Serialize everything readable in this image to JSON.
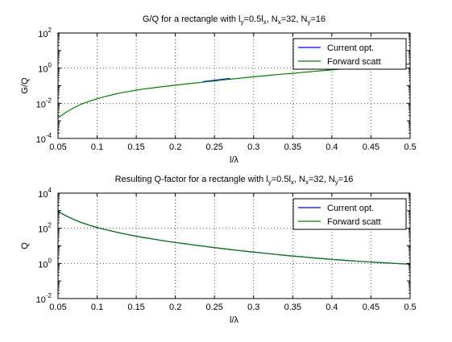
{
  "chart_data": [
    {
      "type": "line",
      "title": "G/Q for a rectangle with l_y=0.5l_x, N_x=32, N_y=16",
      "title_parts": [
        {
          "t": "G/Q for a rectangle with l",
          "s": ""
        },
        {
          "t": "y",
          "s": "sub"
        },
        {
          "t": "=0.5l",
          "s": ""
        },
        {
          "t": "x",
          "s": "sub"
        },
        {
          "t": ", N",
          "s": ""
        },
        {
          "t": "x",
          "s": "sub"
        },
        {
          "t": "=32, N",
          "s": ""
        },
        {
          "t": "y",
          "s": "sub"
        },
        {
          "t": "=16",
          "s": ""
        }
      ],
      "xlabel": "l/λ",
      "ylabel": "G/Q",
      "xlim": [
        0.05,
        0.5
      ],
      "ylim_log10": [
        -4,
        2
      ],
      "yscale": "log",
      "grid": true,
      "legend_position": "top-right",
      "x_ticks": [
        "0.05",
        "0.1",
        "0.15",
        "0.2",
        "0.25",
        "0.3",
        "0.35",
        "0.4",
        "0.45",
        "0.5"
      ],
      "y_tick_exponents": [
        "-4",
        "-2",
        "0",
        "2"
      ],
      "y_tick_base": "10",
      "series": [
        {
          "name": "Current opt.",
          "color": "#0000ff",
          "x": [
            0.235,
            0.25,
            0.26,
            0.27
          ],
          "y": [
            0.17,
            0.205,
            0.23,
            0.26
          ]
        },
        {
          "name": "Forward scatt",
          "color": "#008000",
          "x": [
            0.05,
            0.06,
            0.07,
            0.08,
            0.09,
            0.1,
            0.11,
            0.12,
            0.13,
            0.14,
            0.15,
            0.16,
            0.17,
            0.18,
            0.19,
            0.2,
            0.21,
            0.22,
            0.23,
            0.24,
            0.25,
            0.26,
            0.27,
            0.28,
            0.29,
            0.3,
            0.31,
            0.32,
            0.33,
            0.34,
            0.35,
            0.36,
            0.37,
            0.38,
            0.39,
            0.4,
            0.41,
            0.42,
            0.43,
            0.44,
            0.45,
            0.46,
            0.47,
            0.48,
            0.49,
            0.5
          ],
          "y": [
            0.0015,
            0.003,
            0.0055,
            0.009,
            0.013,
            0.018,
            0.024,
            0.031,
            0.039,
            0.047,
            0.056,
            0.065,
            0.074,
            0.084,
            0.095,
            0.107,
            0.12,
            0.135,
            0.15,
            0.168,
            0.187,
            0.21,
            0.235,
            0.26,
            0.29,
            0.32,
            0.355,
            0.39,
            0.43,
            0.47,
            0.5,
            0.56,
            0.61,
            0.67,
            0.73,
            0.8,
            0.87,
            0.95,
            1.03,
            1.12,
            1.2,
            1.3,
            1.4,
            1.5,
            1.6,
            1.7
          ]
        }
      ]
    },
    {
      "type": "line",
      "title": "Resulting Q-factor for a rectangle with l_y=0.5l_x, N_x=32, N_y=16",
      "title_parts": [
        {
          "t": "Resulting Q-factor for a rectangle with l",
          "s": ""
        },
        {
          "t": "y",
          "s": "sub"
        },
        {
          "t": "=0.5l",
          "s": ""
        },
        {
          "t": "x",
          "s": "sub"
        },
        {
          "t": ", N",
          "s": ""
        },
        {
          "t": "x",
          "s": "sub"
        },
        {
          "t": "=32, N",
          "s": ""
        },
        {
          "t": "y",
          "s": "sub"
        },
        {
          "t": "=16",
          "s": ""
        }
      ],
      "xlabel": "l/λ",
      "ylabel": "Q",
      "xlim": [
        0.05,
        0.5
      ],
      "ylim_log10": [
        -2,
        4
      ],
      "yscale": "log",
      "grid": true,
      "legend_position": "top-right",
      "x_ticks": [
        "0.05",
        "0.1",
        "0.15",
        "0.2",
        "0.25",
        "0.3",
        "0.35",
        "0.4",
        "0.45",
        "0.5"
      ],
      "y_tick_exponents": [
        "-2",
        "0",
        "2",
        "4"
      ],
      "y_tick_base": "10",
      "series": [
        {
          "name": "Current opt.",
          "color": "#0000ff",
          "x": [
            0.05,
            0.06,
            0.07,
            0.08,
            0.09,
            0.1,
            0.11,
            0.12,
            0.13,
            0.14,
            0.15,
            0.16,
            0.17,
            0.18,
            0.19,
            0.2,
            0.21,
            0.22,
            0.23,
            0.24,
            0.25,
            0.26,
            0.27,
            0.28,
            0.29,
            0.3,
            0.31,
            0.32,
            0.33,
            0.34,
            0.35,
            0.36,
            0.37,
            0.38,
            0.39,
            0.4,
            0.41,
            0.42,
            0.43,
            0.44,
            0.45,
            0.46,
            0.47,
            0.48,
            0.49,
            0.5
          ],
          "y": [
            900,
            520,
            320,
            210,
            150,
            110,
            85,
            67,
            53,
            43,
            35,
            29.5,
            25,
            21,
            18,
            15.5,
            13.5,
            11.8,
            10.3,
            9.0,
            7.9,
            7.0,
            6.2,
            5.5,
            4.9,
            4.4,
            3.95,
            3.55,
            3.2,
            2.9,
            2.6,
            2.4,
            2.2,
            2.0,
            1.85,
            1.7,
            1.58,
            1.46,
            1.36,
            1.27,
            1.19,
            1.12,
            1.06,
            1.0,
            0.95,
            0.9
          ]
        },
        {
          "name": "Forward scatt",
          "color": "#008000",
          "x": [
            0.05,
            0.06,
            0.07,
            0.08,
            0.09,
            0.1,
            0.11,
            0.12,
            0.13,
            0.14,
            0.15,
            0.16,
            0.17,
            0.18,
            0.19,
            0.2,
            0.21,
            0.22,
            0.23,
            0.24,
            0.25,
            0.26,
            0.27,
            0.28,
            0.29,
            0.3,
            0.31,
            0.32,
            0.33,
            0.34,
            0.35,
            0.36,
            0.37,
            0.38,
            0.39,
            0.4,
            0.41,
            0.42,
            0.43,
            0.44,
            0.45,
            0.46,
            0.47,
            0.48,
            0.49,
            0.5
          ],
          "y": [
            900,
            520,
            320,
            210,
            150,
            110,
            85,
            67,
            53,
            43,
            35,
            29.5,
            25,
            21,
            18,
            15.5,
            13.5,
            11.8,
            10.3,
            9.0,
            7.9,
            7.0,
            6.2,
            5.5,
            4.9,
            4.4,
            3.95,
            3.55,
            3.2,
            2.9,
            2.6,
            2.4,
            2.2,
            2.0,
            1.85,
            1.7,
            1.58,
            1.46,
            1.36,
            1.27,
            1.19,
            1.12,
            1.06,
            1.0,
            0.95,
            0.9
          ]
        }
      ]
    }
  ]
}
